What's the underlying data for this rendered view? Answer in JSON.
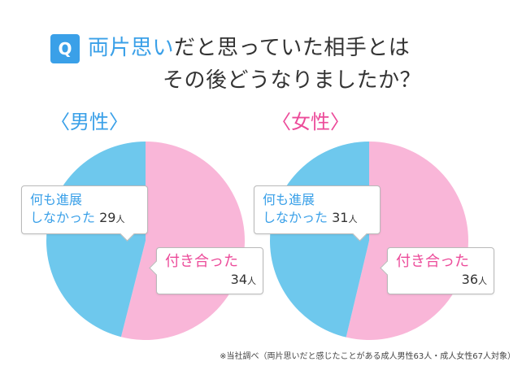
{
  "question": {
    "badge": "Q",
    "line1_highlight": "両片思い",
    "line1_rest": "だと思っていた相手とは",
    "line2": "その後どうなりましたか？"
  },
  "chart_data": [
    {
      "type": "pie",
      "title": "〈男性〉",
      "slices": [
        {
          "label": "付き合った",
          "value": 34,
          "unit": "人",
          "color": "#f9b6d8"
        },
        {
          "label": "何も進展しなかった",
          "value": 29,
          "unit": "人",
          "color": "#6ec8ed"
        }
      ]
    },
    {
      "type": "pie",
      "title": "〈女性〉",
      "slices": [
        {
          "label": "付き合った",
          "value": 36,
          "unit": "人",
          "color": "#f9b6d8"
        },
        {
          "label": "何も進展しなかった",
          "value": 31,
          "unit": "人",
          "color": "#6ec8ed"
        }
      ]
    }
  ],
  "labels": {
    "nothing_line1": "何も進展",
    "nothing_line2": "しなかった",
    "dated": "付き合った",
    "unit": "人"
  },
  "footnote": "※当社調べ（両片思いだと感じたことがある成人男性63人・成人女性67人対象）"
}
